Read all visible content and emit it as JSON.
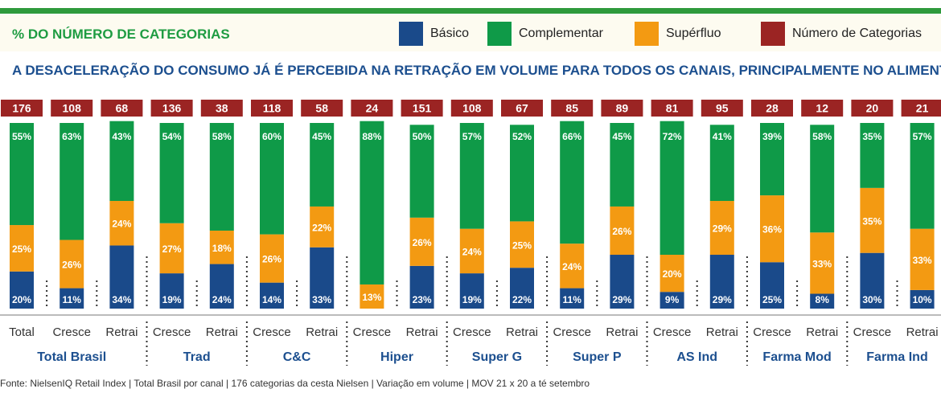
{
  "header": {
    "category_title": "% DO NÚMERO DE CATEGORIAS",
    "subtitle": "A DESACELERAÇÃO DO CONSUMO JÁ É PERCEBIDA NA RETRAÇÃO EM VOLUME PARA TODOS OS CANAIS, PRINCIPALMENTE NO ALIMENTAR"
  },
  "legend": [
    {
      "label": "Básico",
      "color": "#1a4a8a"
    },
    {
      "label": "Complementar",
      "color": "#0f9a48"
    },
    {
      "label": "Supérfluo",
      "color": "#f39a12"
    },
    {
      "label": "Número de Categorias",
      "color": "#9b2423"
    }
  ],
  "source": "Fonte: NielsenIQ Retail Index | Total Brasil por canal | 176 categorias da cesta Nielsen | Variação em volume | MOV 21 x 20 a té setembro",
  "chart_data": {
    "type": "bar",
    "stacked": true,
    "ylim": [
      0,
      100
    ],
    "categories": [
      "Total",
      "Cresce",
      "Retrai",
      "Cresce",
      "Retrai",
      "Cresce",
      "Retrai",
      "Cresce",
      "Retrai",
      "Cresce",
      "Retrai",
      "Cresce",
      "Retrai",
      "Cresce",
      "Retrai",
      "Cresce",
      "Retrai",
      "Cresce",
      "Retrai"
    ],
    "groups": [
      {
        "label": "Total Brasil",
        "indices": [
          0,
          1,
          2
        ]
      },
      {
        "label": "Trad",
        "indices": [
          3,
          4
        ]
      },
      {
        "label": "C&C",
        "indices": [
          5,
          6
        ]
      },
      {
        "label": "Hiper",
        "indices": [
          7,
          8
        ]
      },
      {
        "label": "Super G",
        "indices": [
          9,
          10
        ]
      },
      {
        "label": "Super P",
        "indices": [
          11,
          12
        ]
      },
      {
        "label": "AS Ind",
        "indices": [
          13,
          14
        ]
      },
      {
        "label": "Farma Mod",
        "indices": [
          15,
          16
        ]
      },
      {
        "label": "Farma Ind",
        "indices": [
          17,
          18
        ]
      }
    ],
    "category_counts": [
      176,
      108,
      68,
      136,
      38,
      118,
      58,
      24,
      151,
      108,
      67,
      85,
      89,
      81,
      95,
      28,
      12,
      20,
      21
    ],
    "series": [
      {
        "name": "Básico",
        "color": "#1a4a8a",
        "values": [
          20,
          11,
          34,
          19,
          24,
          14,
          33,
          0,
          23,
          19,
          22,
          11,
          29,
          9,
          29,
          25,
          8,
          30,
          10
        ]
      },
      {
        "name": "Supérfluo",
        "color": "#f39a12",
        "values": [
          25,
          26,
          24,
          27,
          18,
          26,
          22,
          13,
          26,
          24,
          25,
          24,
          26,
          20,
          29,
          36,
          33,
          35,
          33
        ]
      },
      {
        "name": "Complementar",
        "color": "#0f9a48",
        "values": [
          55,
          63,
          43,
          54,
          58,
          60,
          45,
          88,
          50,
          57,
          52,
          66,
          45,
          72,
          41,
          39,
          58,
          35,
          57
        ]
      }
    ]
  }
}
